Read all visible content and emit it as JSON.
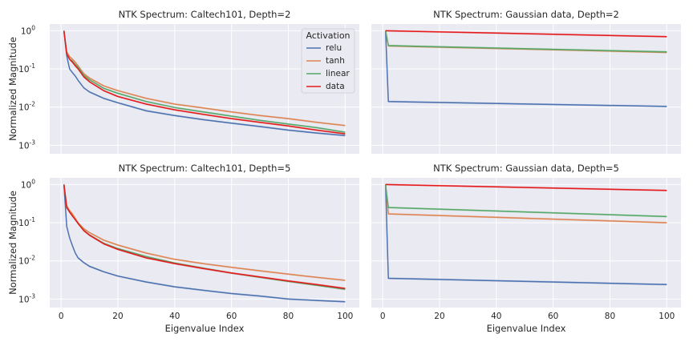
{
  "chart_data": [
    {
      "type": "line",
      "title": "NTK Spectrum: Caltech101, Depth=2",
      "xlabel": "",
      "ylabel": "Normalized Magnitude",
      "yscale": "log",
      "xlim": [
        -4,
        105
      ],
      "ylim": [
        0.0006,
        1.5
      ],
      "xticks": [],
      "yticks": [
        {
          "v": 1,
          "exp": "0"
        },
        {
          "v": 0.1,
          "exp": "-1"
        },
        {
          "v": 0.01,
          "exp": "-2"
        },
        {
          "v": 0.001,
          "exp": "-3"
        }
      ],
      "grid": true,
      "legend": {
        "title": "Activation",
        "placement": "top-right"
      },
      "series": [
        {
          "name": "relu",
          "color": "#4c72b0",
          "x": [
            1,
            2,
            3,
            4,
            5,
            6,
            8,
            10,
            15,
            20,
            30,
            40,
            50,
            60,
            70,
            80,
            90,
            100
          ],
          "y": [
            1.0,
            0.22,
            0.1,
            0.08,
            0.065,
            0.05,
            0.032,
            0.025,
            0.017,
            0.013,
            0.008,
            0.006,
            0.0047,
            0.0038,
            0.0031,
            0.0025,
            0.0021,
            0.0018
          ]
        },
        {
          "name": "tanh",
          "color": "#dd8452",
          "x": [
            1,
            2,
            3,
            4,
            5,
            6,
            8,
            10,
            15,
            20,
            30,
            40,
            50,
            60,
            70,
            80,
            90,
            100
          ],
          "y": [
            1.0,
            0.28,
            0.21,
            0.18,
            0.15,
            0.12,
            0.075,
            0.058,
            0.036,
            0.027,
            0.017,
            0.012,
            0.0095,
            0.0075,
            0.006,
            0.005,
            0.004,
            0.0033
          ]
        },
        {
          "name": "linear",
          "color": "#55a868",
          "x": [
            1,
            2,
            3,
            4,
            5,
            6,
            8,
            10,
            15,
            20,
            30,
            40,
            50,
            60,
            70,
            80,
            90,
            100
          ],
          "y": [
            1.0,
            0.24,
            0.18,
            0.16,
            0.13,
            0.11,
            0.068,
            0.052,
            0.031,
            0.023,
            0.014,
            0.0098,
            0.0075,
            0.0058,
            0.0045,
            0.0036,
            0.0029,
            0.0022
          ]
        },
        {
          "name": "data",
          "color": "#e41a1c",
          "x": [
            1,
            2,
            3,
            4,
            5,
            6,
            8,
            10,
            15,
            20,
            30,
            40,
            50,
            60,
            70,
            80,
            90,
            100
          ],
          "y": [
            1.0,
            0.25,
            0.18,
            0.15,
            0.12,
            0.1,
            0.062,
            0.046,
            0.027,
            0.019,
            0.012,
            0.0085,
            0.0065,
            0.005,
            0.004,
            0.0032,
            0.0025,
            0.002
          ]
        }
      ]
    },
    {
      "type": "line",
      "title": "NTK Spectrum: Gaussian data, Depth=2",
      "xlabel": "",
      "ylabel": "",
      "yscale": "log",
      "xlim": [
        -4,
        105
      ],
      "ylim": [
        0.0006,
        1.5
      ],
      "xticks": [],
      "yticks": [],
      "grid": true,
      "series": [
        {
          "name": "relu",
          "color": "#4c72b0",
          "x": [
            1,
            2,
            100
          ],
          "y": [
            1.0,
            0.014,
            0.0104
          ]
        },
        {
          "name": "tanh",
          "color": "#dd8452",
          "x": [
            1,
            2,
            100
          ],
          "y": [
            1.0,
            0.4,
            0.27
          ]
        },
        {
          "name": "linear",
          "color": "#55a868",
          "x": [
            1,
            2,
            100
          ],
          "y": [
            1.0,
            0.41,
            0.28
          ]
        },
        {
          "name": "data",
          "color": "#e41a1c",
          "x": [
            1,
            100
          ],
          "y": [
            1.0,
            0.7
          ]
        }
      ]
    },
    {
      "type": "line",
      "title": "NTK Spectrum: Caltech101, Depth=5",
      "xlabel": "Eigenvalue Index",
      "ylabel": "Normalized Magnitude",
      "yscale": "log",
      "xlim": [
        -4,
        105
      ],
      "ylim": [
        0.0006,
        1.5
      ],
      "xticks": [
        0,
        20,
        40,
        60,
        80,
        100
      ],
      "yticks": [
        {
          "v": 1,
          "exp": "0"
        },
        {
          "v": 0.1,
          "exp": "-1"
        },
        {
          "v": 0.01,
          "exp": "-2"
        },
        {
          "v": 0.001,
          "exp": "-3"
        }
      ],
      "grid": true,
      "series": [
        {
          "name": "relu",
          "color": "#4c72b0",
          "x": [
            1,
            2,
            3,
            4,
            5,
            6,
            8,
            10,
            15,
            20,
            30,
            40,
            50,
            60,
            70,
            80,
            90,
            100
          ],
          "y": [
            1.0,
            0.08,
            0.04,
            0.025,
            0.016,
            0.012,
            0.009,
            0.0072,
            0.0052,
            0.004,
            0.0028,
            0.0021,
            0.0017,
            0.0014,
            0.0012,
            0.001,
            0.00092,
            0.00085
          ]
        },
        {
          "name": "tanh",
          "color": "#dd8452",
          "x": [
            1,
            2,
            3,
            4,
            5,
            6,
            8,
            10,
            15,
            20,
            30,
            40,
            50,
            60,
            70,
            80,
            90,
            100
          ],
          "y": [
            1.0,
            0.28,
            0.21,
            0.17,
            0.13,
            0.1,
            0.07,
            0.055,
            0.035,
            0.026,
            0.016,
            0.011,
            0.0085,
            0.0068,
            0.0055,
            0.0045,
            0.0037,
            0.0031
          ]
        },
        {
          "name": "linear",
          "color": "#55a868",
          "x": [
            1,
            2,
            3,
            4,
            5,
            6,
            8,
            10,
            15,
            20,
            30,
            40,
            50,
            60,
            70,
            80,
            90,
            100
          ],
          "y": [
            1.0,
            0.25,
            0.19,
            0.15,
            0.12,
            0.095,
            0.063,
            0.048,
            0.029,
            0.021,
            0.013,
            0.0088,
            0.0065,
            0.0048,
            0.0037,
            0.0029,
            0.0023,
            0.0018
          ]
        },
        {
          "name": "data",
          "color": "#e41a1c",
          "x": [
            1,
            2,
            3,
            4,
            5,
            6,
            8,
            10,
            15,
            20,
            30,
            40,
            50,
            60,
            70,
            80,
            90,
            100
          ],
          "y": [
            1.0,
            0.25,
            0.19,
            0.15,
            0.12,
            0.095,
            0.062,
            0.047,
            0.028,
            0.02,
            0.012,
            0.0085,
            0.0063,
            0.0048,
            0.0038,
            0.003,
            0.0024,
            0.0019
          ]
        }
      ]
    },
    {
      "type": "line",
      "title": "NTK Spectrum: Gaussian data, Depth=5",
      "xlabel": "Eigenvalue Index",
      "ylabel": "",
      "yscale": "log",
      "xlim": [
        -4,
        105
      ],
      "ylim": [
        0.0006,
        1.5
      ],
      "xticks": [
        0,
        20,
        40,
        60,
        80,
        100
      ],
      "yticks": [],
      "grid": true,
      "series": [
        {
          "name": "relu",
          "color": "#4c72b0",
          "x": [
            1,
            2,
            100
          ],
          "y": [
            1.0,
            0.0035,
            0.0024
          ]
        },
        {
          "name": "tanh",
          "color": "#dd8452",
          "x": [
            1,
            2,
            100
          ],
          "y": [
            1.0,
            0.17,
            0.1
          ]
        },
        {
          "name": "linear",
          "color": "#55a868",
          "x": [
            1,
            2,
            100
          ],
          "y": [
            1.0,
            0.25,
            0.145
          ]
        },
        {
          "name": "data",
          "color": "#e41a1c",
          "x": [
            1,
            100
          ],
          "y": [
            1.0,
            0.7
          ]
        }
      ]
    }
  ]
}
